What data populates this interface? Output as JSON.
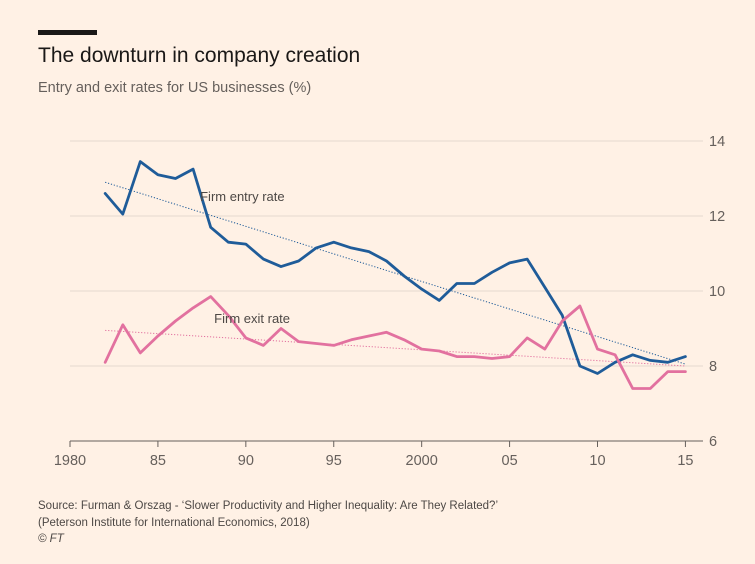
{
  "title": "The downturn in company creation",
  "subtitle": "Entry and exit rates for US businesses (%)",
  "source_lines": [
    "Source: Furman & Orszag - ‘Slower Productivity and Higher Inequality: Are They Related?’",
    "(Peterson Institute for International Economics, 2018)"
  ],
  "credit": "© FT",
  "chart_data": {
    "type": "line",
    "title": "The downturn in company creation",
    "subtitle": "Entry and exit rates for US businesses (%)",
    "xlim": [
      1980,
      2016
    ],
    "ylim": [
      6,
      14
    ],
    "x_ticks": [
      1980,
      1985,
      1990,
      1995,
      2000,
      2005,
      2010,
      2015
    ],
    "x_tick_labels": [
      "1980",
      "85",
      "90",
      "95",
      "2000",
      "05",
      "10",
      "15"
    ],
    "y_ticks": [
      6,
      8,
      10,
      12,
      14
    ],
    "y_tick_labels": [
      "6",
      "8",
      "10",
      "12",
      "14"
    ],
    "y_axis_side": "right",
    "grid": "horizontal",
    "x": [
      1982,
      1983,
      1984,
      1985,
      1986,
      1987,
      1988,
      1989,
      1990,
      1991,
      1992,
      1993,
      1994,
      1995,
      1996,
      1997,
      1998,
      1999,
      2000,
      2001,
      2002,
      2003,
      2004,
      2005,
      2006,
      2007,
      2008,
      2009,
      2010,
      2011,
      2012,
      2013,
      2014,
      2015
    ],
    "series": [
      {
        "name": "Firm entry rate",
        "color": "#1f5c99",
        "values": [
          12.6,
          12.05,
          13.45,
          13.1,
          13.0,
          13.25,
          11.7,
          11.3,
          11.25,
          10.85,
          10.65,
          10.8,
          11.15,
          11.3,
          11.15,
          11.05,
          10.8,
          10.4,
          10.05,
          9.75,
          10.2,
          10.2,
          10.5,
          10.75,
          10.85,
          10.1,
          9.35,
          8.0,
          7.8,
          8.1,
          8.3,
          8.15,
          8.1,
          8.25
        ],
        "trend": [
          12.9,
          8.05
        ]
      },
      {
        "name": "Firm exit rate",
        "color": "#e2719f",
        "values": [
          8.1,
          9.1,
          8.35,
          8.8,
          9.2,
          9.55,
          9.85,
          9.35,
          8.75,
          8.55,
          9.0,
          8.65,
          8.6,
          8.55,
          8.7,
          8.8,
          8.9,
          8.7,
          8.45,
          8.4,
          8.25,
          8.25,
          8.2,
          8.25,
          8.75,
          8.45,
          9.2,
          9.6,
          8.45,
          8.3,
          7.4,
          7.4,
          7.85,
          7.85
        ],
        "trend": [
          8.95,
          8.0
        ]
      }
    ]
  }
}
